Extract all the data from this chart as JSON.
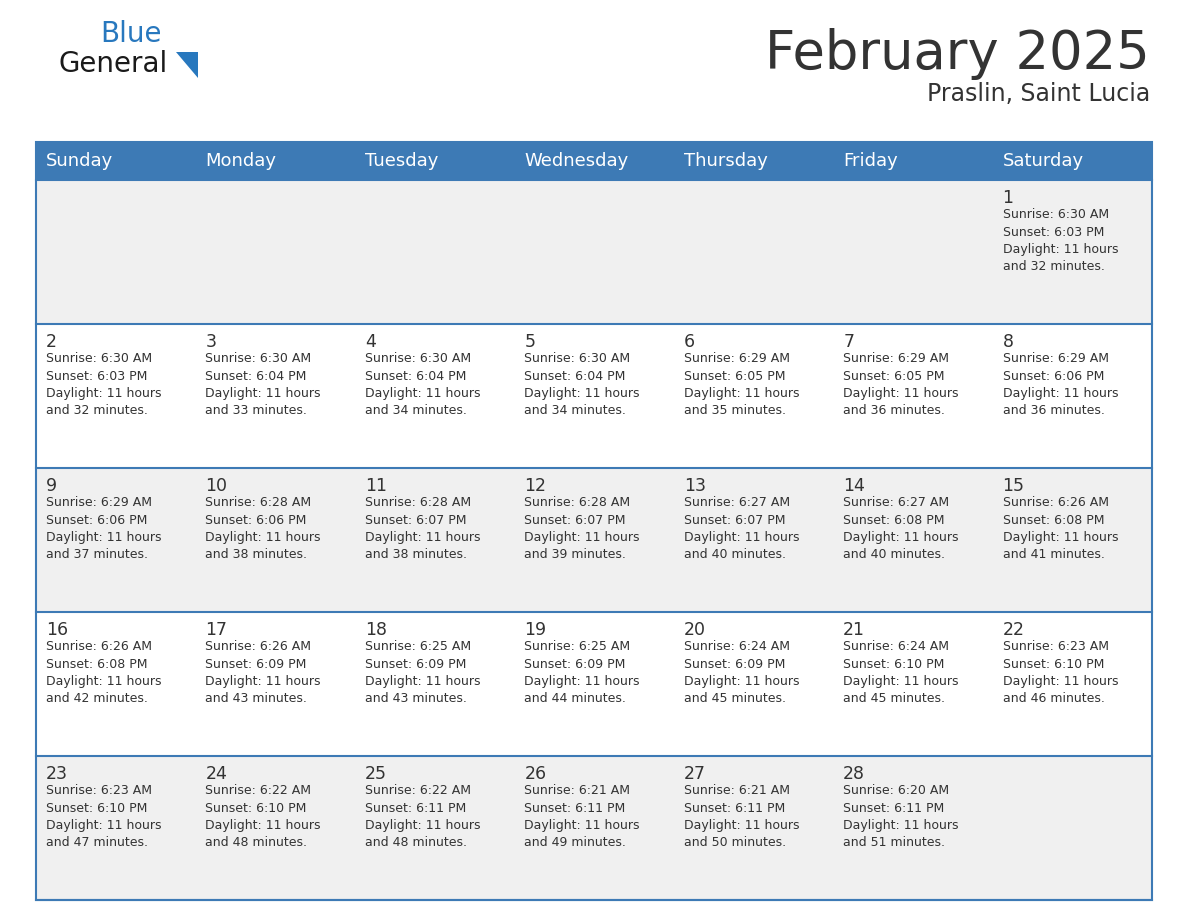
{
  "title": "February 2025",
  "subtitle": "Praslin, Saint Lucia",
  "days_of_week": [
    "Sunday",
    "Monday",
    "Tuesday",
    "Wednesday",
    "Thursday",
    "Friday",
    "Saturday"
  ],
  "header_bg": "#3d7ab5",
  "header_text": "#ffffff",
  "cell_bg_even": "#f0f0f0",
  "cell_bg_odd": "#ffffff",
  "border_color": "#3d7ab5",
  "text_color": "#333333",
  "logo_general_color": "#1a1a1a",
  "logo_blue_color": "#2878be",
  "calendar_data": [
    [
      null,
      null,
      null,
      null,
      null,
      null,
      {
        "day": 1,
        "sunrise": "6:30 AM",
        "sunset": "6:03 PM",
        "daylight": "11 hours\nand 32 minutes."
      }
    ],
    [
      {
        "day": 2,
        "sunrise": "6:30 AM",
        "sunset": "6:03 PM",
        "daylight": "11 hours\nand 32 minutes."
      },
      {
        "day": 3,
        "sunrise": "6:30 AM",
        "sunset": "6:04 PM",
        "daylight": "11 hours\nand 33 minutes."
      },
      {
        "day": 4,
        "sunrise": "6:30 AM",
        "sunset": "6:04 PM",
        "daylight": "11 hours\nand 34 minutes."
      },
      {
        "day": 5,
        "sunrise": "6:30 AM",
        "sunset": "6:04 PM",
        "daylight": "11 hours\nand 34 minutes."
      },
      {
        "day": 6,
        "sunrise": "6:29 AM",
        "sunset": "6:05 PM",
        "daylight": "11 hours\nand 35 minutes."
      },
      {
        "day": 7,
        "sunrise": "6:29 AM",
        "sunset": "6:05 PM",
        "daylight": "11 hours\nand 36 minutes."
      },
      {
        "day": 8,
        "sunrise": "6:29 AM",
        "sunset": "6:06 PM",
        "daylight": "11 hours\nand 36 minutes."
      }
    ],
    [
      {
        "day": 9,
        "sunrise": "6:29 AM",
        "sunset": "6:06 PM",
        "daylight": "11 hours\nand 37 minutes."
      },
      {
        "day": 10,
        "sunrise": "6:28 AM",
        "sunset": "6:06 PM",
        "daylight": "11 hours\nand 38 minutes."
      },
      {
        "day": 11,
        "sunrise": "6:28 AM",
        "sunset": "6:07 PM",
        "daylight": "11 hours\nand 38 minutes."
      },
      {
        "day": 12,
        "sunrise": "6:28 AM",
        "sunset": "6:07 PM",
        "daylight": "11 hours\nand 39 minutes."
      },
      {
        "day": 13,
        "sunrise": "6:27 AM",
        "sunset": "6:07 PM",
        "daylight": "11 hours\nand 40 minutes."
      },
      {
        "day": 14,
        "sunrise": "6:27 AM",
        "sunset": "6:08 PM",
        "daylight": "11 hours\nand 40 minutes."
      },
      {
        "day": 15,
        "sunrise": "6:26 AM",
        "sunset": "6:08 PM",
        "daylight": "11 hours\nand 41 minutes."
      }
    ],
    [
      {
        "day": 16,
        "sunrise": "6:26 AM",
        "sunset": "6:08 PM",
        "daylight": "11 hours\nand 42 minutes."
      },
      {
        "day": 17,
        "sunrise": "6:26 AM",
        "sunset": "6:09 PM",
        "daylight": "11 hours\nand 43 minutes."
      },
      {
        "day": 18,
        "sunrise": "6:25 AM",
        "sunset": "6:09 PM",
        "daylight": "11 hours\nand 43 minutes."
      },
      {
        "day": 19,
        "sunrise": "6:25 AM",
        "sunset": "6:09 PM",
        "daylight": "11 hours\nand 44 minutes."
      },
      {
        "day": 20,
        "sunrise": "6:24 AM",
        "sunset": "6:09 PM",
        "daylight": "11 hours\nand 45 minutes."
      },
      {
        "day": 21,
        "sunrise": "6:24 AM",
        "sunset": "6:10 PM",
        "daylight": "11 hours\nand 45 minutes."
      },
      {
        "day": 22,
        "sunrise": "6:23 AM",
        "sunset": "6:10 PM",
        "daylight": "11 hours\nand 46 minutes."
      }
    ],
    [
      {
        "day": 23,
        "sunrise": "6:23 AM",
        "sunset": "6:10 PM",
        "daylight": "11 hours\nand 47 minutes."
      },
      {
        "day": 24,
        "sunrise": "6:22 AM",
        "sunset": "6:10 PM",
        "daylight": "11 hours\nand 48 minutes."
      },
      {
        "day": 25,
        "sunrise": "6:22 AM",
        "sunset": "6:11 PM",
        "daylight": "11 hours\nand 48 minutes."
      },
      {
        "day": 26,
        "sunrise": "6:21 AM",
        "sunset": "6:11 PM",
        "daylight": "11 hours\nand 49 minutes."
      },
      {
        "day": 27,
        "sunrise": "6:21 AM",
        "sunset": "6:11 PM",
        "daylight": "11 hours\nand 50 minutes."
      },
      {
        "day": 28,
        "sunrise": "6:20 AM",
        "sunset": "6:11 PM",
        "daylight": "11 hours\nand 51 minutes."
      },
      null
    ]
  ],
  "figsize": [
    11.88,
    9.18
  ],
  "dpi": 100
}
